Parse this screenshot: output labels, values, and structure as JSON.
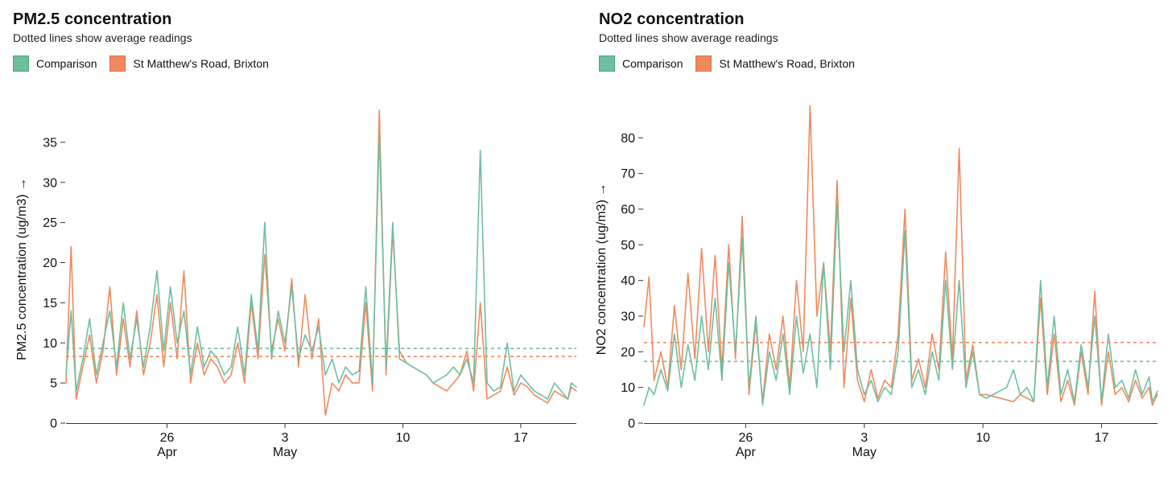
{
  "charts": [
    {
      "title": "PM2.5 concentration",
      "subtitle": "Dotted lines show average readings"
    },
    {
      "title": "NO2 concentration",
      "subtitle": "Dotted lines show average readings"
    }
  ],
  "colors": {
    "comparison": "#6fbf9f",
    "st_matthews": "#ef8a5e",
    "axis": "#333333"
  },
  "chart_data": [
    {
      "type": "line",
      "title": "PM2.5 concentration",
      "subtitle": "Dotted lines show average readings",
      "xlabel": "",
      "ylabel": "PM2.5 concentration (ug/m3) →",
      "xlim": [
        "Apr 20",
        "May 19"
      ],
      "ylim": [
        0,
        40
      ],
      "y_ticks": [
        0,
        5,
        10,
        15,
        20,
        25,
        30,
        35
      ],
      "x_ticks": [
        {
          "label": "26",
          "sub": "Apr",
          "day": 26
        },
        {
          "label": "3",
          "sub": "May",
          "day": 33
        },
        {
          "label": "10",
          "sub": "",
          "day": 40
        },
        {
          "label": "17",
          "sub": "",
          "day": 47
        }
      ],
      "legend": "top-left",
      "grid": false,
      "series": [
        {
          "name": "Comparison",
          "color": "#6fbf9f",
          "average": 9.3,
          "x": [
            20,
            20.3,
            20.6,
            21,
            21.4,
            21.8,
            22.2,
            22.6,
            23,
            23.4,
            23.8,
            24.2,
            24.6,
            25,
            25.4,
            25.8,
            26.2,
            26.6,
            27,
            27.4,
            27.8,
            28.2,
            28.6,
            29,
            29.4,
            29.8,
            30.2,
            30.6,
            31,
            31.4,
            31.8,
            32.2,
            32.6,
            33,
            33.4,
            33.8,
            34.2,
            34.6,
            35,
            35.4,
            35.8,
            36.2,
            36.6,
            37,
            37.4,
            37.8,
            38.2,
            38.6,
            39,
            39.4,
            39.8,
            40.2,
            40.6,
            41,
            41.4,
            41.8,
            42.2,
            42.6,
            43,
            43.4,
            43.8,
            44.2,
            44.6,
            45,
            45.4,
            45.8,
            46.2,
            46.6,
            47,
            47.4,
            47.8,
            48.2,
            48.6,
            49,
            49.4,
            49.8,
            50,
            50.3
          ],
          "values": [
            6,
            14,
            4,
            8,
            13,
            6,
            10,
            14,
            7,
            15,
            8,
            13,
            7,
            12,
            19,
            9,
            17,
            10,
            14,
            6,
            12,
            7,
            9,
            8,
            6,
            7,
            12,
            6,
            16,
            9,
            25,
            8,
            14,
            10,
            17,
            8,
            11,
            9,
            12,
            6,
            8,
            5,
            7,
            6,
            6.5,
            17,
            5,
            36,
            7,
            25,
            8,
            7.5,
            7,
            6.5,
            6,
            5,
            5.5,
            6,
            7,
            6,
            8,
            5,
            34,
            5,
            4,
            4.5,
            10,
            4,
            6,
            5,
            4,
            3.5,
            3,
            5,
            4,
            3,
            5,
            4.5
          ]
        },
        {
          "name": "St Matthew's Road, Brixton",
          "color": "#ef8a5e",
          "average": 8.3,
          "x": [
            20,
            20.3,
            20.6,
            21,
            21.4,
            21.8,
            22.2,
            22.6,
            23,
            23.4,
            23.8,
            24.2,
            24.6,
            25,
            25.4,
            25.8,
            26.2,
            26.6,
            27,
            27.4,
            27.8,
            28.2,
            28.6,
            29,
            29.4,
            29.8,
            30.2,
            30.6,
            31,
            31.4,
            31.8,
            32.2,
            32.6,
            33,
            33.4,
            33.8,
            34.2,
            34.6,
            35,
            35.4,
            35.8,
            36.2,
            36.6,
            37,
            37.4,
            37.8,
            38.2,
            38.6,
            39,
            39.4,
            39.8,
            40.2,
            40.6,
            41,
            41.4,
            41.8,
            42.2,
            42.6,
            43,
            43.4,
            43.8,
            44.2,
            44.6,
            45,
            45.4,
            45.8,
            46.2,
            46.6,
            47,
            47.4,
            47.8,
            48.2,
            48.6,
            49,
            49.4,
            49.8,
            50,
            50.3
          ],
          "values": [
            5,
            22,
            3,
            7,
            11,
            5,
            9,
            17,
            6,
            13,
            7,
            14,
            6,
            10,
            16,
            7,
            15,
            8,
            19,
            5,
            10,
            6,
            8,
            7,
            5,
            6,
            10,
            5,
            15,
            8,
            21,
            9,
            13,
            9,
            18,
            7,
            16,
            8,
            13,
            1,
            5,
            4,
            6,
            5,
            5,
            15,
            4,
            39,
            6,
            24,
            9,
            7.5,
            7,
            6.5,
            6,
            5,
            4.5,
            4,
            5,
            6,
            9,
            4,
            15,
            3,
            3.5,
            4,
            7,
            3.5,
            5,
            4.5,
            3.5,
            3,
            2.5,
            4,
            3.5,
            3,
            4.5,
            4
          ]
        }
      ]
    },
    {
      "type": "line",
      "title": "NO2 concentration",
      "subtitle": "Dotted lines show average readings",
      "xlabel": "",
      "ylabel": "NO2 concentration (ug/m3) →",
      "xlim": [
        "Apr 20",
        "May 19"
      ],
      "ylim": [
        0,
        90
      ],
      "y_ticks": [
        0,
        10,
        20,
        30,
        40,
        50,
        60,
        70,
        80
      ],
      "x_ticks": [
        {
          "label": "26",
          "sub": "Apr",
          "day": 26
        },
        {
          "label": "3",
          "sub": "May",
          "day": 33
        },
        {
          "label": "10",
          "sub": "",
          "day": 40
        },
        {
          "label": "17",
          "sub": "",
          "day": 47
        }
      ],
      "legend": "top-left",
      "grid": false,
      "series": [
        {
          "name": "Comparison",
          "color": "#6fbf9f",
          "average": 17.3,
          "x": [
            20,
            20.3,
            20.6,
            21,
            21.4,
            21.8,
            22.2,
            22.6,
            23,
            23.4,
            23.8,
            24.2,
            24.6,
            25,
            25.4,
            25.8,
            26.2,
            26.6,
            27,
            27.4,
            27.8,
            28.2,
            28.6,
            29,
            29.4,
            29.8,
            30.2,
            30.6,
            31,
            31.4,
            31.8,
            32.2,
            32.6,
            33,
            33.4,
            33.8,
            34.2,
            34.6,
            35,
            35.4,
            35.8,
            36.2,
            36.6,
            37,
            37.4,
            37.8,
            38.2,
            38.6,
            39,
            39.4,
            39.8,
            40.2,
            40.6,
            41,
            41.4,
            41.8,
            42.2,
            42.6,
            43,
            43.4,
            43.8,
            44.2,
            44.6,
            45,
            45.4,
            45.8,
            46.2,
            46.6,
            47,
            47.4,
            47.8,
            48.2,
            48.6,
            49,
            49.4,
            49.8,
            50,
            50.3
          ],
          "values": [
            5,
            10,
            8,
            15,
            9,
            25,
            10,
            22,
            12,
            30,
            15,
            35,
            12,
            45,
            20,
            52,
            10,
            30,
            5,
            20,
            12,
            25,
            8,
            30,
            14,
            25,
            10,
            45,
            15,
            62,
            20,
            40,
            15,
            8,
            12,
            6,
            10,
            8,
            20,
            54,
            10,
            15,
            8,
            20,
            12,
            40,
            15,
            40,
            10,
            20,
            8,
            7,
            8,
            9,
            10,
            15,
            8,
            10,
            6,
            40,
            10,
            30,
            8,
            15,
            6,
            22,
            10,
            30,
            6,
            25,
            10,
            12,
            7,
            15,
            8,
            13,
            6,
            9
          ]
        },
        {
          "name": "St Matthew's Road, Brixton",
          "color": "#ef8a5e",
          "average": 22.6,
          "x": [
            20,
            20.3,
            20.6,
            21,
            21.4,
            21.8,
            22.2,
            22.6,
            23,
            23.4,
            23.8,
            24.2,
            24.6,
            25,
            25.4,
            25.8,
            26.2,
            26.6,
            27,
            27.4,
            27.8,
            28.2,
            28.6,
            29,
            29.4,
            29.8,
            30.2,
            30.6,
            31,
            31.4,
            31.8,
            32.2,
            32.6,
            33,
            33.4,
            33.8,
            34.2,
            34.6,
            35,
            35.4,
            35.8,
            36.2,
            36.6,
            37,
            37.4,
            37.8,
            38.2,
            38.6,
            39,
            39.4,
            39.8,
            40.2,
            40.6,
            41,
            41.4,
            41.8,
            42.2,
            42.6,
            43,
            43.4,
            43.8,
            44.2,
            44.6,
            45,
            45.4,
            45.8,
            46.2,
            46.6,
            47,
            47.4,
            47.8,
            48.2,
            48.6,
            49,
            49.4,
            49.8,
            50,
            50.3
          ],
          "values": [
            27,
            41,
            12,
            20,
            10,
            33,
            15,
            42,
            18,
            49,
            20,
            47,
            15,
            50,
            18,
            58,
            8,
            28,
            6,
            25,
            15,
            30,
            10,
            40,
            20,
            89,
            30,
            45,
            20,
            68,
            10,
            35,
            12,
            6,
            15,
            7,
            12,
            10,
            25,
            60,
            12,
            18,
            10,
            25,
            15,
            48,
            18,
            77,
            12,
            22,
            8,
            8,
            7.5,
            7,
            6.5,
            6,
            8,
            7,
            6,
            35,
            8,
            25,
            6,
            12,
            5,
            20,
            8,
            37,
            5,
            20,
            8,
            10,
            6,
            12,
            7,
            10,
            5,
            8
          ]
        }
      ]
    }
  ]
}
